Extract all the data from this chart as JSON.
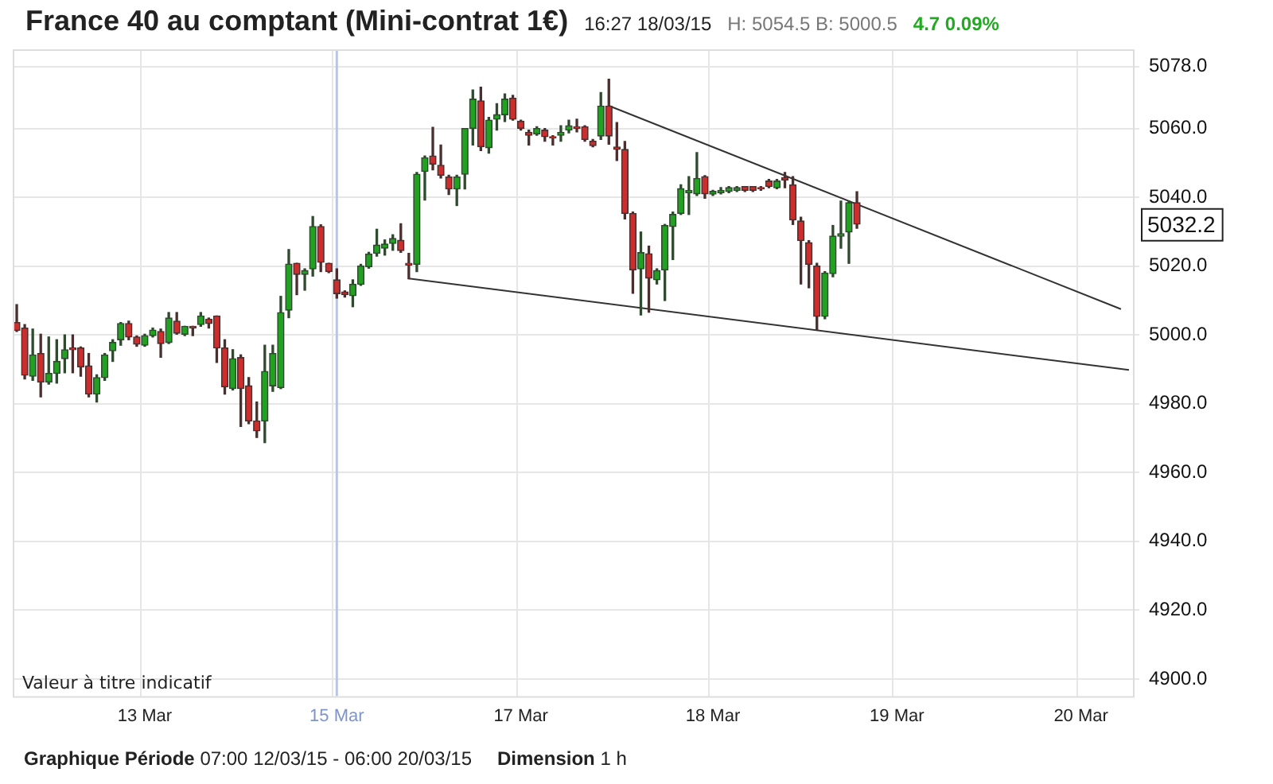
{
  "chart_data": {
    "type": "candlestick",
    "title": "France 40 au comptant (Mini-contrat 1€)",
    "subtitle": "16:27 18/03/15",
    "categories": [
      null,
      null,
      null,
      null,
      null,
      null,
      null,
      null,
      null,
      null,
      null,
      null,
      null,
      null,
      null,
      null,
      "13 Mar",
      null,
      null,
      null,
      null,
      null,
      null,
      null,
      null,
      null,
      null,
      null,
      null,
      null,
      null,
      null,
      null,
      null,
      null,
      null,
      null,
      null,
      null,
      null,
      "15 Mar",
      null,
      null,
      null,
      null,
      null,
      null,
      null,
      null,
      null,
      null,
      null,
      null,
      null,
      null,
      null,
      null,
      null,
      null,
      null,
      null,
      null,
      null,
      "17 Mar",
      null,
      null,
      null,
      null,
      null,
      null,
      null,
      null,
      null,
      null,
      null,
      null,
      null,
      null,
      null,
      null,
      null,
      null,
      null,
      null,
      null,
      null,
      null,
      "18 Mar",
      null,
      null,
      null,
      null,
      null,
      null,
      null,
      null,
      null,
      null,
      null,
      null,
      null,
      null,
      null,
      null,
      null,
      null,
      null,
      null,
      null,
      null,
      "19 Mar",
      null,
      null,
      null,
      null,
      null,
      null,
      null,
      null,
      null,
      null,
      null,
      null,
      null,
      null,
      null,
      null,
      null,
      null,
      null,
      null,
      null,
      null,
      "20 Mar",
      null,
      null,
      null,
      null,
      null,
      null
    ],
    "ohlc": [
      [
        5003.6,
        5008.8,
        5001,
        5001.3
      ],
      [
        5002,
        5003,
        4987.2,
        4988.3
      ],
      [
        4988,
        5001.7,
        4986.8,
        4994.2
      ],
      [
        4994.6,
        5000.2,
        4982,
        4986.3
      ],
      [
        4986.3,
        4999.4,
        4985.7,
        4988.8
      ],
      [
        4988.8,
        4998.6,
        4986,
        4992.3
      ],
      [
        4993.1,
        5000,
        4989,
        4995.7
      ],
      [
        4996.2,
        5000,
        4989,
        4995.7
      ],
      [
        4996.2,
        4996.5,
        4988,
        4990.7
      ],
      [
        4991,
        4994.6,
        4982,
        4982.8
      ],
      [
        4982.8,
        4988.4,
        4980.5,
        4987.6
      ],
      [
        4987.6,
        4994.6,
        4986.8,
        4994.2
      ],
      [
        4995.4,
        4998.6,
        4992.3,
        4997.8
      ],
      [
        4998.6,
        5003.6,
        4997,
        5003.3
      ],
      [
        5003.3,
        5004,
        4998.6,
        4999.4
      ],
      [
        4999.4,
        4999.7,
        4996.7,
        4997.3
      ],
      [
        4997,
        5000.2,
        4996.7,
        4999.8
      ],
      [
        4999.8,
        5002,
        4999.4,
        5001.4
      ],
      [
        5001,
        5001.7,
        4993.5,
        4997.5
      ],
      [
        4997.8,
        5006.5,
        4997.5,
        5004.9
      ],
      [
        5004,
        5006.5,
        5000.2,
        5000.5
      ],
      [
        5000.2,
        5002.5,
        4999.8,
        5002.5
      ],
      [
        5002.5,
        5002.5,
        4999.8,
        5002
      ],
      [
        5003,
        5006.5,
        5002.5,
        5005.5
      ],
      [
        5004.6,
        5004.9,
        5002,
        5003.3
      ],
      [
        5005.5,
        5005.5,
        4992,
        4996.2
      ],
      [
        4996.2,
        4998.6,
        4982.8,
        4984.9
      ],
      [
        4984.4,
        4995.7,
        4984,
        4993.1
      ],
      [
        4993.4,
        4994.2,
        4973.4,
        4984.4
      ],
      [
        4985.2,
        4987.6,
        4974.2,
        4975
      ],
      [
        4975,
        4980.5,
        4970.2,
        4972.1
      ],
      [
        4975,
        4997,
        4968.7,
        4989.4
      ],
      [
        4985.2,
        4997,
        4983.6,
        4994.6
      ],
      [
        4984.7,
        5011.2,
        4984.4,
        5006.5
      ],
      [
        5007.2,
        5024.8,
        5005,
        5020.6
      ],
      [
        5020.8,
        5020.8,
        5011.7,
        5017.6
      ],
      [
        5017.6,
        5019.2,
        5013,
        5018.7
      ],
      [
        5019.2,
        5034.4,
        5017.1,
        5031.5
      ],
      [
        5031.5,
        5032,
        5018.4,
        5021.1
      ],
      [
        5020.8,
        5020.8,
        5018.1,
        5018.4
      ],
      [
        5016,
        5019.2,
        5010.7,
        5012
      ],
      [
        5012.5,
        5012.8,
        5011,
        5011.7
      ],
      [
        5011.4,
        5016,
        5008.2,
        5014.7
      ],
      [
        5014.7,
        5020.5,
        5014.4,
        5020
      ],
      [
        5019.8,
        5024,
        5019.4,
        5023.5
      ],
      [
        5023.7,
        5030.7,
        5022.9,
        5026.1
      ],
      [
        5025.2,
        5027.6,
        5023.2,
        5026.4
      ],
      [
        5026.6,
        5029.1,
        5024.6,
        5028
      ],
      [
        5027.5,
        5032.3,
        5024,
        5024.5
      ],
      [
        5020.8,
        5023.7,
        5016.3,
        5020.3
      ],
      [
        5020.5,
        5047.2,
        5018.4,
        5046.7
      ],
      [
        5047.5,
        5052,
        5039.2,
        5051.5
      ],
      [
        5052,
        5060.3,
        5048,
        5049.6
      ],
      [
        5049.3,
        5055.2,
        5045.6,
        5046.4
      ],
      [
        5045.9,
        5046.4,
        5040.8,
        5042.4
      ],
      [
        5042.4,
        5046.4,
        5037.6,
        5045.9
      ],
      [
        5046.7,
        5060,
        5042.4,
        5060
      ],
      [
        5060,
        5071.2,
        5055.2,
        5068.5
      ],
      [
        5068,
        5072,
        5053.6,
        5054.7
      ],
      [
        5054.4,
        5063.2,
        5052.8,
        5062.4
      ],
      [
        5062.7,
        5067.2,
        5059.5,
        5064
      ],
      [
        5064,
        5070,
        5062,
        5068.5
      ],
      [
        5068.8,
        5069.6,
        5062.4,
        5062.7
      ],
      [
        5062.1,
        5062.4,
        5059.5,
        5060
      ],
      [
        5058.9,
        5059.5,
        5055.2,
        5058
      ],
      [
        5058.4,
        5060.5,
        5058,
        5060
      ],
      [
        5059.5,
        5060,
        5056.3,
        5057.6
      ],
      [
        5057.6,
        5057.9,
        5055.2,
        5057.3
      ],
      [
        5058,
        5060.8,
        5056.3,
        5058.9
      ],
      [
        5059.5,
        5062.4,
        5058.7,
        5060.8
      ],
      [
        5060.5,
        5062.7,
        5059,
        5060
      ],
      [
        5060.5,
        5060.8,
        5056.3,
        5056.8
      ],
      [
        5056.3,
        5056.8,
        5054.7,
        5055
      ],
      [
        5057.8,
        5070.4,
        5056.8,
        5066.5
      ],
      [
        5066.5,
        5074.3,
        5055.4,
        5057.8
      ],
      [
        5054.6,
        5061.7,
        5050.7,
        5053.9
      ],
      [
        5053.9,
        5056.2,
        5033.7,
        5035.3
      ],
      [
        5035.3,
        5035.7,
        5012.1,
        5018.9
      ],
      [
        5019.2,
        5029.9,
        5005.8,
        5023.9
      ],
      [
        5023.6,
        5025.8,
        5006.6,
        5016.5
      ],
      [
        5016,
        5019.2,
        5014.8,
        5018.7
      ],
      [
        5018.9,
        5032.1,
        5010,
        5031.8
      ],
      [
        5031.5,
        5035.7,
        5021.9,
        5035
      ],
      [
        5035.3,
        5043.6,
        5035,
        5042.5
      ],
      [
        5041.3,
        5046,
        5035,
        5042
      ],
      [
        5041,
        5053,
        5040.5,
        5045.5
      ],
      [
        5046,
        5046.3,
        5039.7,
        5041
      ],
      [
        5040.9,
        5042,
        5040.5,
        5041.7
      ],
      [
        5041.3,
        5042.8,
        5041,
        5042
      ],
      [
        5041.7,
        5043.1,
        5041.3,
        5042.8
      ],
      [
        5042,
        5043.1,
        5041.7,
        5042.8
      ],
      [
        5043.1,
        5043.1,
        5041.7,
        5042
      ],
      [
        5043.1,
        5043.1,
        5041.7,
        5042
      ],
      [
        5042.8,
        5043.1,
        5042,
        5042.4
      ],
      [
        5044.7,
        5045.2,
        5042.8,
        5043.1
      ],
      [
        5042.8,
        5045.2,
        5042.5,
        5044.7
      ],
      [
        5045.7,
        5047.2,
        5042.8,
        5045
      ],
      [
        5043.6,
        5046,
        5032.1,
        5033.4
      ],
      [
        5033.1,
        5034.2,
        5014.8,
        5027.4
      ],
      [
        5026.8,
        5027.4,
        5013.7,
        5020.5
      ],
      [
        5020,
        5020.8,
        5001.6,
        5005.4
      ],
      [
        5005.4,
        5018.4,
        5004.7,
        5018
      ],
      [
        5017.8,
        5031.8,
        5016.9,
        5028.7
      ],
      [
        5028.7,
        5038.9,
        5025.2,
        5029.4
      ],
      [
        5029.9,
        5038.9,
        5020.8,
        5038.4
      ],
      [
        5038.4,
        5041.6,
        5031,
        5032.2
      ],
      null,
      null,
      null,
      null,
      null,
      null,
      null,
      null,
      null,
      null,
      null,
      null,
      null,
      null,
      null,
      null,
      null,
      null,
      null,
      null,
      null,
      null,
      null,
      null,
      null,
      null,
      null,
      null,
      null,
      null,
      null,
      null,
      null,
      null
    ],
    "series": [
      {
        "type": "line",
        "color": "#333333",
        "values": [
          null,
          null,
          null,
          null,
          null,
          null,
          null,
          null,
          null,
          null,
          null,
          null,
          null,
          null,
          null,
          null,
          null,
          null,
          null,
          null,
          null,
          null,
          null,
          null,
          null,
          null,
          null,
          null,
          null,
          null,
          null,
          null,
          null,
          null,
          null,
          null,
          null,
          null,
          null,
          null,
          null,
          null,
          null,
          null,
          null,
          null,
          null,
          null,
          null,
          null,
          null,
          null,
          null,
          null,
          null,
          null,
          null,
          null,
          null,
          null,
          null,
          null,
          null,
          null,
          null,
          null,
          null,
          null,
          null,
          null,
          null,
          null,
          null,
          null,
          5066.6,
          null,
          null,
          null,
          null,
          null,
          null,
          null,
          null,
          null,
          null,
          null,
          null,
          null,
          null,
          null,
          null,
          null,
          null,
          null,
          null,
          null,
          null,
          null,
          null,
          null,
          null,
          null,
          null,
          null,
          null,
          null,
          null,
          null,
          null,
          null,
          null,
          null,
          null,
          null,
          null,
          null,
          null,
          null,
          null,
          null,
          null,
          null,
          null,
          null,
          null,
          null,
          null,
          null,
          null,
          null,
          null,
          null,
          null,
          null,
          null,
          null,
          null,
          null,
          5007.5,
          null
        ]
      },
      {
        "type": "line",
        "color": "#333333",
        "values": [
          null,
          null,
          null,
          null,
          null,
          null,
          null,
          null,
          null,
          null,
          null,
          null,
          null,
          null,
          null,
          null,
          null,
          null,
          null,
          null,
          null,
          null,
          null,
          null,
          null,
          null,
          null,
          null,
          null,
          null,
          null,
          null,
          null,
          null,
          null,
          null,
          null,
          null,
          null,
          null,
          null,
          null,
          null,
          null,
          null,
          null,
          null,
          null,
          null,
          5016.4,
          null,
          null,
          null,
          null,
          null,
          null,
          null,
          null,
          null,
          null,
          null,
          null,
          null,
          null,
          null,
          null,
          null,
          null,
          null,
          null,
          null,
          null,
          null,
          null,
          null,
          null,
          null,
          null,
          null,
          null,
          null,
          null,
          null,
          null,
          null,
          null,
          null,
          null,
          null,
          null,
          null,
          null,
          null,
          null,
          null,
          null,
          null,
          null,
          null,
          null,
          null,
          null,
          null,
          null,
          null,
          null,
          null,
          null,
          null,
          null,
          null,
          null,
          null,
          null,
          null,
          null,
          null,
          null,
          null,
          null,
          null,
          null,
          null,
          null,
          null,
          null,
          null,
          null,
          null,
          null,
          null,
          null,
          null,
          null,
          null,
          null,
          null,
          null,
          null,
          4989.8
        ]
      }
    ],
    "ylim": [
      4895,
      5083
    ],
    "yticks": [
      {
        "value": 4900,
        "label": "4900.0"
      },
      {
        "value": 4920,
        "label": "4920.0"
      },
      {
        "value": 4940,
        "label": "4940.0"
      },
      {
        "value": 4960,
        "label": "4960.0"
      },
      {
        "value": 4980,
        "label": "4980.0"
      },
      {
        "value": 5000,
        "label": "5000.0"
      },
      {
        "value": 5020,
        "label": "5020.0"
      },
      {
        "value": 5040,
        "label": "5040.0"
      },
      {
        "value": 5060,
        "label": "5060.0"
      },
      {
        "value": 5078,
        "label": "5078.0"
      }
    ],
    "ref_lines": [
      {
        "axis": "x",
        "value": "15 Mar",
        "color": "#b9c6e0"
      }
    ],
    "annotations": [
      "H: 5054.5  B: 5000.5",
      "4.7  0.09%",
      "5032.2",
      "Valeur à titre indicatif",
      "Graphique Période 07:00 12/03/15 - 06:00 20/03/15",
      "Dimension 1 h"
    ],
    "grid": true,
    "legend": false
  }
}
